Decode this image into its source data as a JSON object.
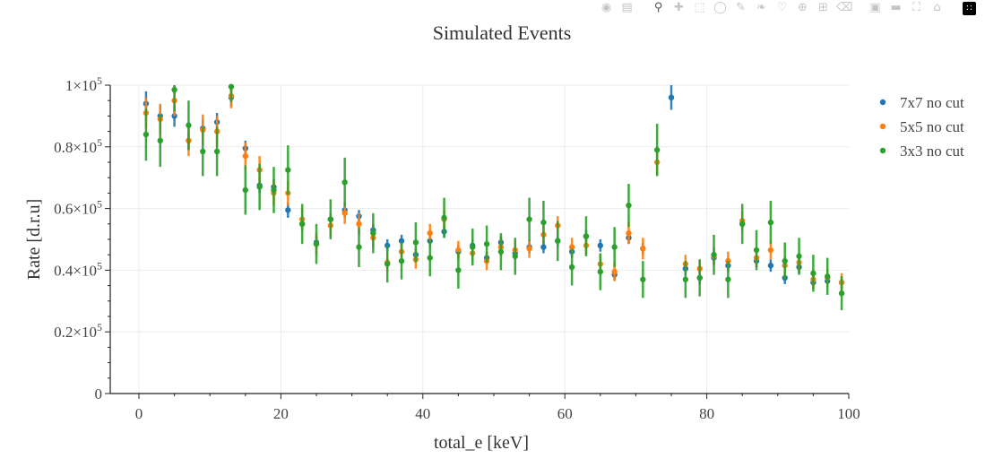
{
  "modebar": {
    "icons": [
      "camera-icon",
      "save-icon",
      "zoom-icon",
      "pan-icon",
      "box-select-icon",
      "lasso-select-icon",
      "draw-line-icon",
      "draw-path-icon",
      "draw-closed-path-icon",
      "draw-circle-icon",
      "draw-rect-icon",
      "erase-shape-icon",
      "zoom-in-icon",
      "zoom-out-icon",
      "autoscale-icon",
      "reset-axes-icon",
      "plotly-logo-icon"
    ]
  },
  "chart_data": {
    "type": "scatter",
    "title": "Simulated Events",
    "xlabel": "total_e [keV]",
    "ylabel": "Rate [d.r.u]",
    "xlim": [
      -4,
      100
    ],
    "ylim": [
      0,
      100000
    ],
    "xticks": [
      0,
      20,
      40,
      60,
      80,
      100
    ],
    "xtick_labels": [
      "0",
      "20",
      "40",
      "60",
      "80",
      "100"
    ],
    "yticks": [
      0,
      20000,
      40000,
      60000,
      80000,
      100000
    ],
    "ytick_labels": [
      {
        "mant": "0",
        "exp": ""
      },
      {
        "mant": "0.2×10",
        "exp": "5"
      },
      {
        "mant": "0.4×10",
        "exp": "5"
      },
      {
        "mant": "0.6×10",
        "exp": "5"
      },
      {
        "mant": "0.8×10",
        "exp": "5"
      },
      {
        "mant": "1×10",
        "exp": "5"
      }
    ],
    "grid": true,
    "legend_position": "top-right",
    "x": [
      1,
      3,
      5,
      7,
      9,
      11,
      13,
      15,
      17,
      19,
      21,
      23,
      25,
      27,
      29,
      31,
      33,
      35,
      37,
      39,
      41,
      43,
      45,
      47,
      49,
      51,
      53,
      55,
      57,
      59,
      61,
      63,
      65,
      67,
      69,
      71,
      73,
      75,
      77,
      79,
      81,
      83,
      85,
      87,
      89,
      91,
      93,
      95,
      97,
      99
    ],
    "series": [
      {
        "name": "7x7 no cut",
        "color": "#1f77b4",
        "values": [
          94000,
          90000,
          90000,
          82000,
          86000,
          88000,
          96000,
          79500,
          67500,
          67000,
          59500,
          55000,
          49000,
          56500,
          59500,
          57500,
          53000,
          48000,
          49500,
          45000,
          49500,
          52500,
          46000,
          48000,
          44000,
          49000,
          45500,
          47500,
          47500,
          49500,
          46000,
          51000,
          48000,
          38500,
          50500,
          47000,
          null,
          96000,
          40500,
          37500,
          44000,
          41500,
          55000,
          43000,
          41500,
          37500,
          41000,
          36000,
          36500,
          36000
        ],
        "errors": [
          4000,
          3500,
          3500,
          3000,
          3000,
          3000,
          3000,
          2500,
          2500,
          2500,
          2500,
          2000,
          2000,
          2000,
          2500,
          2000,
          2000,
          2000,
          2000,
          2000,
          2000,
          2000,
          2000,
          2000,
          2000,
          2000,
          2000,
          2000,
          2000,
          2000,
          2000,
          2000,
          2000,
          2000,
          2000,
          2000,
          0,
          4000,
          2000,
          2000,
          2000,
          2000,
          2000,
          2000,
          2000,
          2000,
          2000,
          2000,
          2000,
          2000
        ]
      },
      {
        "name": "5x5 no cut",
        "color": "#ff7f0e",
        "values": [
          91000,
          89000,
          95000,
          82000,
          85500,
          85000,
          96500,
          77000,
          72500,
          65000,
          65000,
          56500,
          48500,
          54500,
          58500,
          55000,
          50500,
          42500,
          46000,
          43500,
          52000,
          56500,
          46500,
          45500,
          43000,
          47500,
          46500,
          47000,
          51500,
          54500,
          47500,
          48000,
          42000,
          39500,
          52000,
          47000,
          75000,
          null,
          42000,
          40500,
          44500,
          43000,
          56000,
          44000,
          46500,
          41500,
          42500,
          37000,
          37500,
          36000
        ],
        "errors": [
          5000,
          5000,
          5000,
          5000,
          5000,
          5000,
          4000,
          4500,
          4500,
          4000,
          4000,
          3500,
          3500,
          3500,
          3500,
          3500,
          3000,
          3000,
          3000,
          3000,
          3000,
          3000,
          3000,
          3000,
          3000,
          3000,
          3000,
          3000,
          3000,
          3000,
          3000,
          3000,
          3000,
          3000,
          3500,
          3500,
          4000,
          0,
          3000,
          3000,
          3000,
          3000,
          3000,
          3000,
          3000,
          3000,
          3000,
          3000,
          3000,
          3000
        ]
      },
      {
        "name": "3x3 no cut",
        "color": "#2ca02c",
        "values": [
          84000,
          82000,
          98500,
          87000,
          78500,
          78500,
          99500,
          66000,
          67000,
          66000,
          72500,
          55000,
          48500,
          56500,
          68500,
          47500,
          52000,
          42000,
          43000,
          49000,
          44000,
          57000,
          40000,
          47500,
          48500,
          46000,
          44500,
          56500,
          55500,
          49500,
          41000,
          51000,
          39500,
          47500,
          61000,
          37000,
          79000,
          null,
          37000,
          37500,
          45000,
          37000,
          55000,
          46500,
          55500,
          43000,
          44500,
          39000,
          38000,
          32500
        ],
        "errors": [
          8500,
          8500,
          7000,
          8000,
          8000,
          8000,
          5000,
          8000,
          7500,
          7500,
          8000,
          6500,
          6500,
          6500,
          8000,
          6500,
          6500,
          6000,
          6000,
          6500,
          6000,
          6500,
          6000,
          6000,
          6000,
          6000,
          6000,
          7000,
          7000,
          6500,
          6000,
          6500,
          6000,
          6500,
          7000,
          6000,
          8500,
          5000,
          6000,
          6000,
          6500,
          6000,
          6500,
          6500,
          7000,
          6000,
          6000,
          6000,
          6000,
          5500
        ]
      }
    ]
  }
}
